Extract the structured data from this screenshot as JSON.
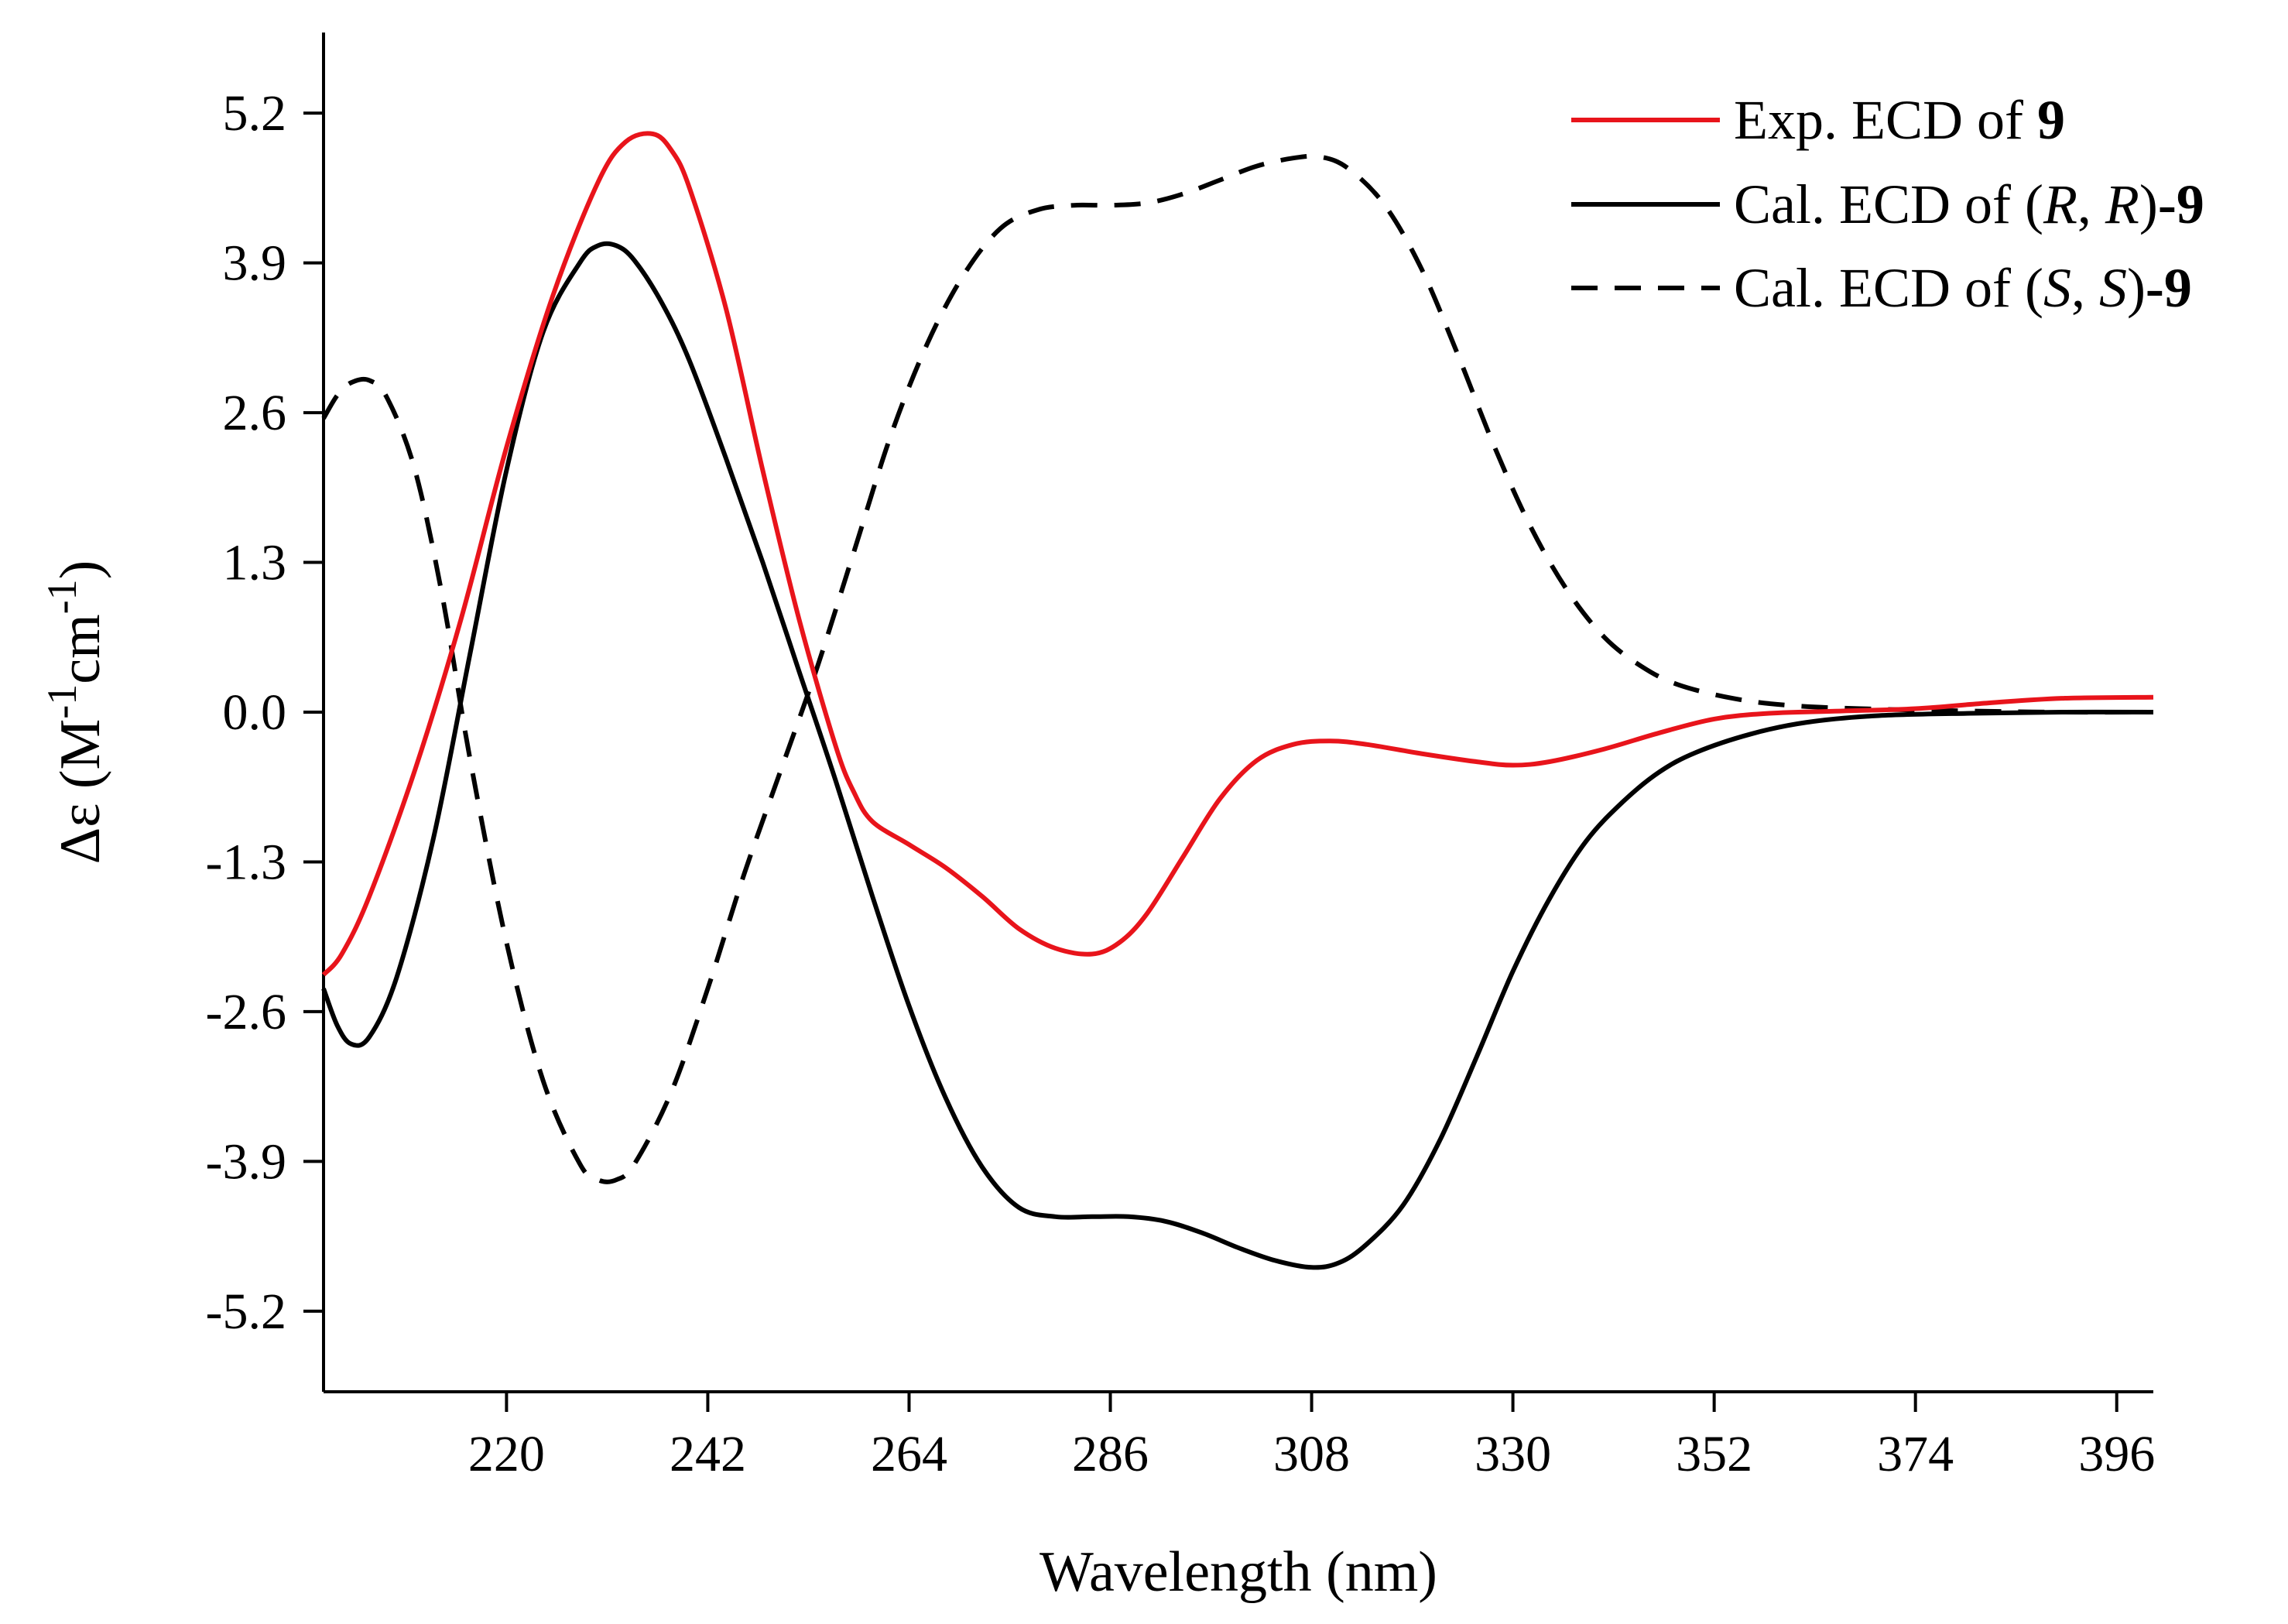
{
  "chart_data": {
    "type": "line",
    "title": "",
    "xlabel": "Wavelength (nm)",
    "ylabel": {
      "prefix": "Δε (M",
      "sup1": "-1",
      "middle": "cm",
      "sup2": "-1",
      "suffix": ")"
    },
    "xlim": [
      200,
      400
    ],
    "ylim": [
      -5.9,
      5.9
    ],
    "x_ticks": [
      220,
      242,
      264,
      286,
      308,
      330,
      352,
      374,
      396
    ],
    "x_tick_labels": [
      "220",
      "242",
      "264",
      "286",
      "308",
      "330",
      "352",
      "374",
      "396"
    ],
    "y_ticks": [
      5.2,
      3.9,
      2.6,
      1.3,
      0.0,
      -1.3,
      -2.6,
      -3.9,
      -5.2
    ],
    "y_tick_labels": [
      "5.2",
      "3.9",
      "2.6",
      "1.3",
      "0.0",
      "-1.3",
      "-2.6",
      "-3.9",
      "-5.2"
    ],
    "grid": false,
    "legend_position": "top-right",
    "series": [
      {
        "name": "Exp. ECD of 9",
        "legend": {
          "parts": [
            "Exp. ECD of "
          ],
          "bold": "9"
        },
        "color": "#e8141b",
        "dash": "solid",
        "points": [
          [
            200,
            -2.28
          ],
          [
            202,
            -2.1
          ],
          [
            205,
            -1.6
          ],
          [
            210,
            -0.5
          ],
          [
            215,
            0.8
          ],
          [
            220,
            2.3
          ],
          [
            225,
            3.6
          ],
          [
            230,
            4.6
          ],
          [
            233,
            4.95
          ],
          [
            236,
            5.02
          ],
          [
            238,
            4.88
          ],
          [
            240,
            4.55
          ],
          [
            244,
            3.5
          ],
          [
            248,
            2.1
          ],
          [
            252,
            0.8
          ],
          [
            256,
            -0.3
          ],
          [
            258,
            -0.7
          ],
          [
            260,
            -0.95
          ],
          [
            264,
            -1.15
          ],
          [
            268,
            -1.35
          ],
          [
            272,
            -1.6
          ],
          [
            276,
            -1.88
          ],
          [
            280,
            -2.05
          ],
          [
            284,
            -2.1
          ],
          [
            287,
            -2.0
          ],
          [
            290,
            -1.75
          ],
          [
            294,
            -1.25
          ],
          [
            298,
            -0.75
          ],
          [
            302,
            -0.42
          ],
          [
            306,
            -0.28
          ],
          [
            310,
            -0.25
          ],
          [
            314,
            -0.28
          ],
          [
            320,
            -0.36
          ],
          [
            326,
            -0.43
          ],
          [
            330,
            -0.46
          ],
          [
            334,
            -0.43
          ],
          [
            340,
            -0.32
          ],
          [
            346,
            -0.18
          ],
          [
            352,
            -0.06
          ],
          [
            358,
            -0.01
          ],
          [
            366,
            0.01
          ],
          [
            374,
            0.03
          ],
          [
            382,
            0.08
          ],
          [
            390,
            0.12
          ],
          [
            400,
            0.13
          ]
        ]
      },
      {
        "name": "Cal. ECD of (R, R)-9",
        "legend": {
          "parts": [
            "Cal. ECD of ("
          ],
          "italic1": "R",
          "sep": ", ",
          "italic2": "R",
          "close": ")",
          "bold": "-9"
        },
        "color": "#000000",
        "dash": "solid",
        "points": [
          [
            200,
            -2.4
          ],
          [
            201.5,
            -2.72
          ],
          [
            203,
            -2.88
          ],
          [
            205,
            -2.82
          ],
          [
            208,
            -2.3
          ],
          [
            212,
            -1.1
          ],
          [
            216,
            0.5
          ],
          [
            220,
            2.1
          ],
          [
            224,
            3.3
          ],
          [
            228,
            3.9
          ],
          [
            230,
            4.05
          ],
          [
            232,
            4.05
          ],
          [
            234,
            3.92
          ],
          [
            237,
            3.55
          ],
          [
            240,
            3.05
          ],
          [
            244,
            2.2
          ],
          [
            248,
            1.3
          ],
          [
            252,
            0.35
          ],
          [
            256,
            -0.6
          ],
          [
            260,
            -1.6
          ],
          [
            264,
            -2.55
          ],
          [
            268,
            -3.35
          ],
          [
            272,
            -3.95
          ],
          [
            276,
            -4.3
          ],
          [
            280,
            -4.38
          ],
          [
            284,
            -4.38
          ],
          [
            288,
            -4.38
          ],
          [
            292,
            -4.42
          ],
          [
            296,
            -4.52
          ],
          [
            300,
            -4.65
          ],
          [
            304,
            -4.76
          ],
          [
            308,
            -4.82
          ],
          [
            311,
            -4.78
          ],
          [
            314,
            -4.62
          ],
          [
            318,
            -4.28
          ],
          [
            322,
            -3.72
          ],
          [
            326,
            -3.0
          ],
          [
            330,
            -2.25
          ],
          [
            334,
            -1.62
          ],
          [
            338,
            -1.12
          ],
          [
            342,
            -0.78
          ],
          [
            346,
            -0.52
          ],
          [
            350,
            -0.35
          ],
          [
            356,
            -0.19
          ],
          [
            362,
            -0.09
          ],
          [
            370,
            -0.03
          ],
          [
            380,
            -0.01
          ],
          [
            390,
            0.0
          ],
          [
            400,
            0.0
          ]
        ]
      },
      {
        "name": "Cal. ECD of (S, S)-9",
        "legend": {
          "parts": [
            "Cal. ECD of ("
          ],
          "italic1": "S",
          "sep": ", ",
          "italic2": "S",
          "close": ")",
          "bold": "-9"
        },
        "color": "#000000",
        "dash": "dashed",
        "points": [
          [
            200,
            2.55
          ],
          [
            201.5,
            2.75
          ],
          [
            203,
            2.86
          ],
          [
            205,
            2.88
          ],
          [
            207,
            2.72
          ],
          [
            210,
            2.1
          ],
          [
            213,
            1.0
          ],
          [
            216,
            -0.4
          ],
          [
            220,
            -2.0
          ],
          [
            224,
            -3.2
          ],
          [
            228,
            -3.92
          ],
          [
            230,
            -4.06
          ],
          [
            232,
            -4.06
          ],
          [
            234,
            -3.92
          ],
          [
            238,
            -3.3
          ],
          [
            242,
            -2.4
          ],
          [
            246,
            -1.4
          ],
          [
            250,
            -0.5
          ],
          [
            254,
            0.4
          ],
          [
            258,
            1.4
          ],
          [
            262,
            2.4
          ],
          [
            266,
            3.2
          ],
          [
            270,
            3.8
          ],
          [
            274,
            4.2
          ],
          [
            278,
            4.36
          ],
          [
            282,
            4.4
          ],
          [
            286,
            4.4
          ],
          [
            290,
            4.42
          ],
          [
            294,
            4.5
          ],
          [
            298,
            4.62
          ],
          [
            302,
            4.74
          ],
          [
            306,
            4.81
          ],
          [
            309,
            4.82
          ],
          [
            312,
            4.72
          ],
          [
            316,
            4.4
          ],
          [
            320,
            3.85
          ],
          [
            324,
            3.1
          ],
          [
            328,
            2.3
          ],
          [
            332,
            1.6
          ],
          [
            336,
            1.05
          ],
          [
            340,
            0.65
          ],
          [
            344,
            0.4
          ],
          [
            348,
            0.24
          ],
          [
            354,
            0.12
          ],
          [
            360,
            0.06
          ],
          [
            368,
            0.03
          ],
          [
            380,
            0.01
          ],
          [
            390,
            0.0
          ],
          [
            400,
            0.0
          ]
        ]
      }
    ]
  }
}
